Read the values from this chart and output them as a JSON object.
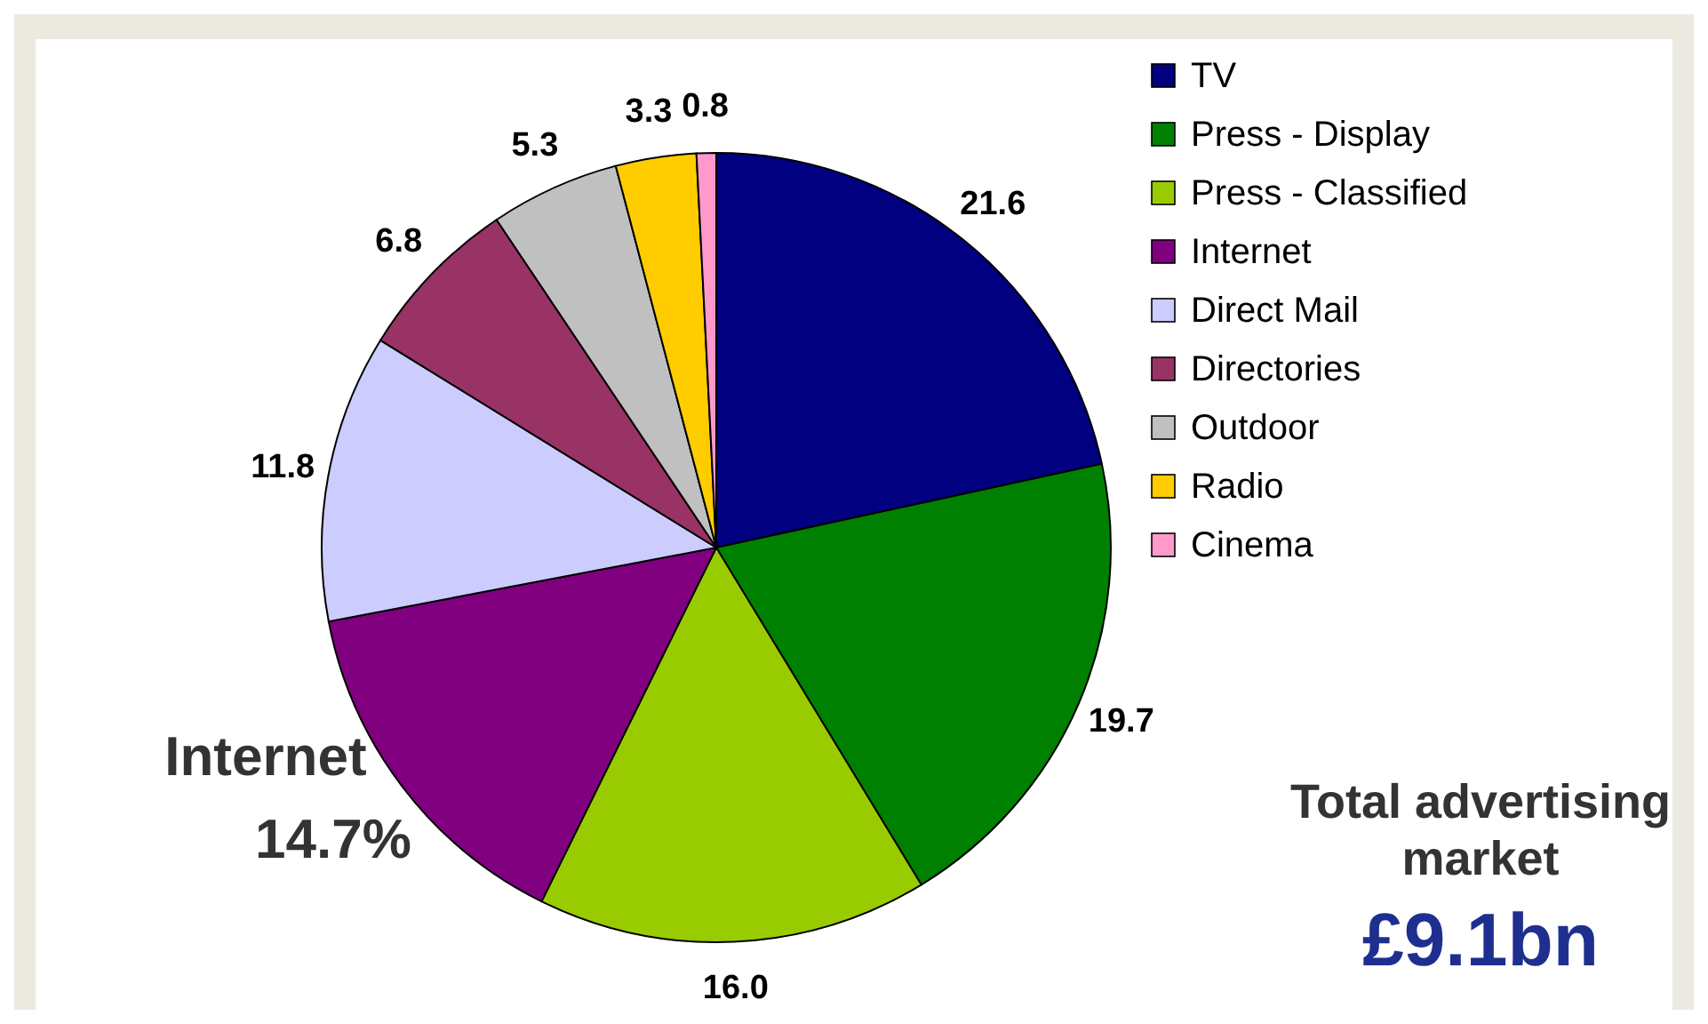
{
  "chart_data": {
    "type": "pie",
    "categories": [
      "TV",
      "Press - Display",
      "Press - Classified",
      "Internet",
      "Direct Mail",
      "Directories",
      "Outdoor",
      "Radio",
      "Cinema"
    ],
    "values": [
      21.6,
      19.7,
      16.0,
      14.7,
      11.8,
      6.8,
      5.3,
      3.3,
      0.8
    ],
    "colors": [
      "#000080",
      "#008000",
      "#99cc00",
      "#800080",
      "#ccccff",
      "#993366",
      "#c0c0c0",
      "#ffcc00",
      "#ff99cc"
    ],
    "value_labels": [
      "21.6",
      "19.7",
      "16.0",
      "14.7%",
      "11.8",
      "6.8",
      "5.3",
      "3.3",
      "0.8"
    ],
    "legend": "top right",
    "annotations": [
      "Internet",
      "Total advertising market",
      "£9.1bn"
    ]
  }
}
